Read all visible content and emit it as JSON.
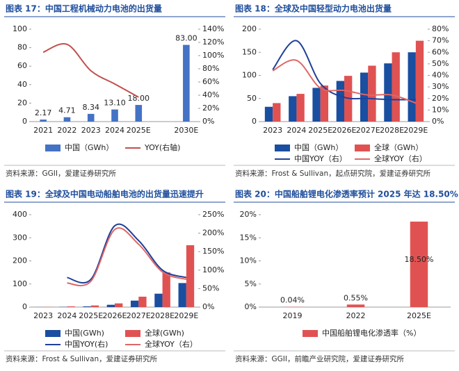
{
  "chart_data": [
    {
      "type": "bar",
      "title": "图表 17：中国工程机械动力电池的出货量",
      "source": "资料来源：GGII，爱建证券研究所",
      "categories": [
        "2021",
        "2022",
        "2023",
        "2024",
        "2025E",
        null,
        "2030E"
      ],
      "series": [
        {
          "name": "中国（GWh）",
          "type": "bar",
          "color": "#4472c4",
          "values": [
            2.17,
            4.71,
            8.34,
            13.1,
            18.0,
            null,
            83.0
          ],
          "value_labels": [
            "2.17",
            "4.71",
            "8.34",
            "13.10",
            "18.00",
            null,
            "83.00"
          ]
        },
        {
          "name": "YOY(右轴)",
          "type": "line",
          "axis": "y2",
          "color": "#c0504d",
          "values": [
            105,
            117,
            77,
            57,
            37,
            null,
            null
          ]
        }
      ],
      "ylim": [
        0,
        100
      ],
      "yticks": [
        0,
        20,
        40,
        60,
        80,
        100
      ],
      "y2lim": [
        0,
        140
      ],
      "y2ticks": [
        {
          "value": 0,
          "label": "0%"
        },
        {
          "value": 20,
          "label": "20%"
        },
        {
          "value": 40,
          "label": "40%"
        },
        {
          "value": 60,
          "label": "60%"
        },
        {
          "value": 80,
          "label": "80%"
        },
        {
          "value": 100,
          "label": "100%"
        },
        {
          "value": 120,
          "label": "120%"
        },
        {
          "value": 140,
          "label": "140%"
        }
      ]
    },
    {
      "type": "bar",
      "title": "图表 18：全球及中国轻型动力电池出货量",
      "source": "资料来源：Frost & Sullivan，起点研究院，爱建证券研究所",
      "categories": [
        "2023",
        "2024",
        "2025E",
        "2026E",
        "2027E",
        "2028E",
        "2029E"
      ],
      "series": [
        {
          "name": "中国（GWh）",
          "type": "bar",
          "color": "#1a4ea0",
          "values": [
            32,
            55,
            73,
            88,
            106,
            126,
            150
          ]
        },
        {
          "name": "全球（GWh）",
          "type": "bar",
          "color": "#e05252",
          "values": [
            40,
            60,
            78,
            99,
            121,
            150,
            175
          ]
        },
        {
          "name": "中国YOY（右）",
          "type": "line",
          "axis": "y2",
          "color": "#1f3f99",
          "values": [
            45,
            70,
            33,
            21,
            20,
            19,
            19
          ]
        },
        {
          "name": "全球YOY（右）",
          "type": "line",
          "axis": "y2",
          "color": "#e06666",
          "values": [
            44,
            53,
            29,
            27,
            23,
            23,
            16
          ]
        }
      ],
      "ylim": [
        0,
        200
      ],
      "yticks": [
        0,
        50,
        100,
        150,
        200
      ],
      "y2lim": [
        0,
        80
      ],
      "y2ticks": [
        {
          "value": 0,
          "label": "0%"
        },
        {
          "value": 10,
          "label": "10%"
        },
        {
          "value": 20,
          "label": "20%"
        },
        {
          "value": 30,
          "label": "30%"
        },
        {
          "value": 40,
          "label": "40%"
        },
        {
          "value": 50,
          "label": "50%"
        },
        {
          "value": 60,
          "label": "60%"
        },
        {
          "value": 70,
          "label": "70%"
        },
        {
          "value": 80,
          "label": "80%"
        }
      ]
    },
    {
      "type": "bar",
      "title": "图表 19：全球及中国电动船舶电池的出货量迅速提升",
      "source": "资料来源：Frost & Sullivan，爱建证券研究所",
      "categories": [
        "2023",
        "2024",
        "2025E",
        "2026E",
        "2027E",
        "2028E",
        "2029E"
      ],
      "series": [
        {
          "name": "中国(GWh)",
          "type": "bar",
          "color": "#1a4ea0",
          "values": [
            0.3,
            1,
            3,
            10,
            28,
            58,
            104
          ]
        },
        {
          "name": "全球(GWh)",
          "type": "bar",
          "color": "#e05252",
          "values": [
            1,
            3,
            7,
            16,
            45,
            150,
            268
          ]
        },
        {
          "name": "中国YOY(右)",
          "type": "line",
          "axis": "y2",
          "color": "#1f3f99",
          "values": [
            null,
            80,
            75,
            220,
            180,
            100,
            80
          ]
        },
        {
          "name": "全球YOY（右）",
          "type": "line",
          "axis": "y2",
          "color": "#e06666",
          "values": [
            null,
            65,
            70,
            210,
            170,
            95,
            75
          ]
        }
      ],
      "ylim": [
        0,
        400
      ],
      "yticks": [
        0,
        100,
        200,
        300,
        400
      ],
      "y2lim": [
        0,
        250
      ],
      "y2ticks": [
        {
          "value": 0,
          "label": "0%"
        },
        {
          "value": 50,
          "label": "50%"
        },
        {
          "value": 100,
          "label": "100%"
        },
        {
          "value": 150,
          "label": "150%"
        },
        {
          "value": 200,
          "label": "200%"
        },
        {
          "value": 250,
          "label": "250%"
        }
      ]
    },
    {
      "type": "bar",
      "title": "图表 20：中国船舶锂电化渗透率预计 2025 年达 18.50%",
      "source": "资料来源：GGII，前瞻产业研究院，爱建证券研究所",
      "categories": [
        "2019",
        "2022",
        "2025E"
      ],
      "series": [
        {
          "name": "中国船舶锂电化渗透率（%）",
          "type": "bar",
          "color": "#e05252",
          "values": [
            0.04,
            0.55,
            18.5
          ],
          "value_labels": [
            "0.04%",
            "0.55%",
            "18.50%"
          ]
        }
      ],
      "ylim": [
        0,
        20
      ],
      "yticks": [
        {
          "value": 0,
          "label": "0%"
        },
        {
          "value": 5,
          "label": "5%"
        },
        {
          "value": 10,
          "label": "10%"
        },
        {
          "value": 15,
          "label": "15%"
        },
        {
          "value": 20,
          "label": "20%"
        }
      ]
    }
  ]
}
